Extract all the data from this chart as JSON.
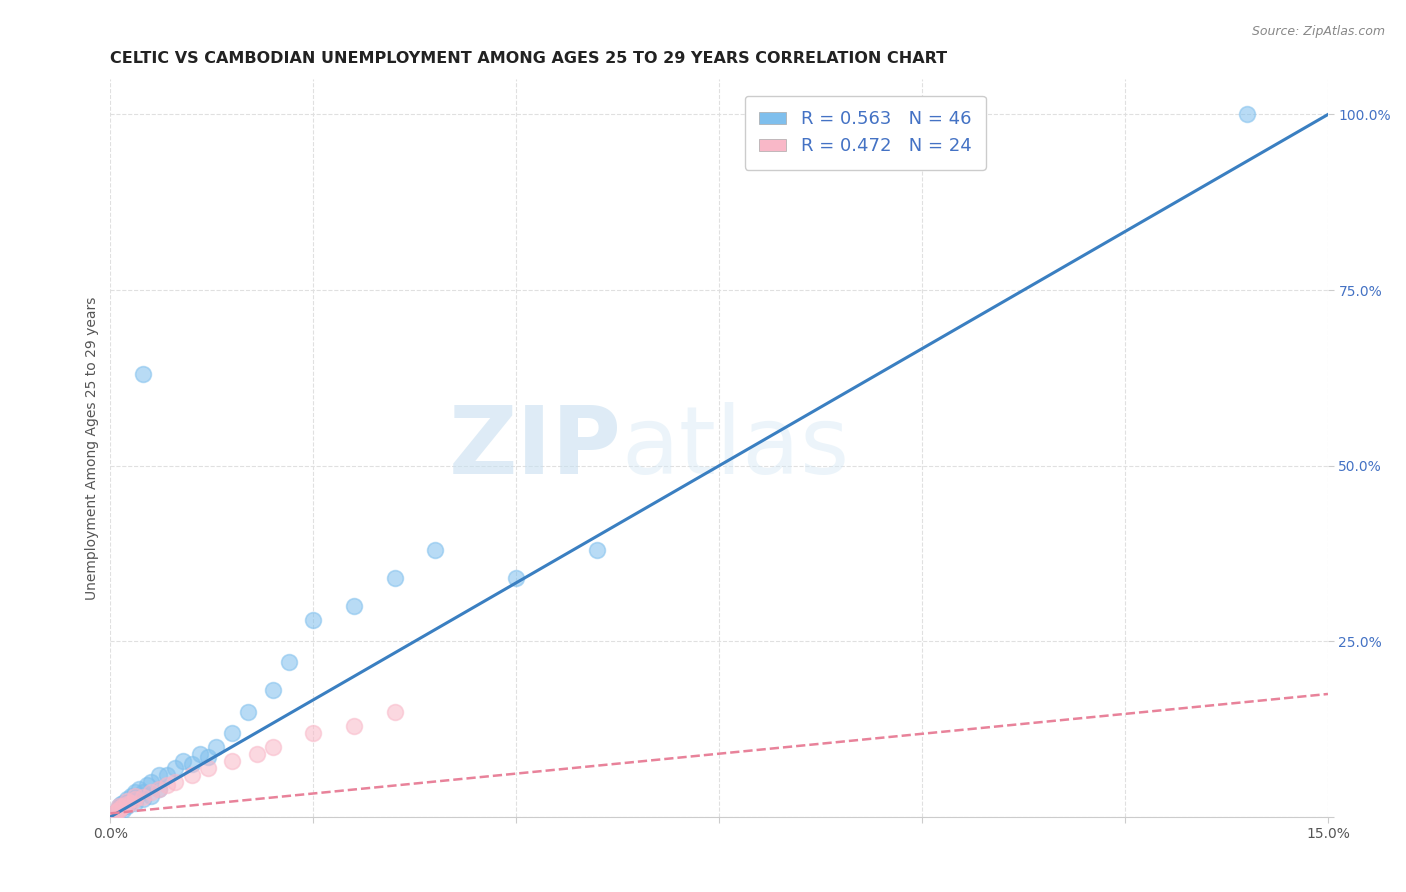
{
  "title": "CELTIC VS CAMBODIAN UNEMPLOYMENT AMONG AGES 25 TO 29 YEARS CORRELATION CHART",
  "source_text": "Source: ZipAtlas.com",
  "ylabel": "Unemployment Among Ages 25 to 29 years",
  "xlim": [
    0.0,
    0.15
  ],
  "ylim": [
    0.0,
    1.05
  ],
  "xticks": [
    0.0,
    0.025,
    0.05,
    0.075,
    0.1,
    0.125,
    0.15
  ],
  "xticklabels": [
    "0.0%",
    "",
    "",
    "",
    "",
    "",
    "15.0%"
  ],
  "yticks": [
    0.0,
    0.25,
    0.5,
    0.75,
    1.0
  ],
  "yticklabels": [
    "",
    "25.0%",
    "50.0%",
    "75.0%",
    "100.0%"
  ],
  "celtic_color": "#7fbfed",
  "cambodian_color": "#f9b8c8",
  "celtic_line_color": "#3a7fc1",
  "cambodian_line_color": "#e8829a",
  "watermark_zip": "ZIP",
  "watermark_atlas": "atlas",
  "bg_color": "#ffffff",
  "grid_color": "#e0e0e0",
  "title_fontsize": 11.5,
  "axis_label_fontsize": 10,
  "tick_fontsize": 10,
  "legend_fontsize": 13,
  "legend_r_celtic": "R = 0.563",
  "legend_n_celtic": "N = 46",
  "legend_r_cambodian": "R = 0.472",
  "legend_n_cambodian": "N = 24",
  "celtic_x": [
    0.0005,
    0.0008,
    0.001,
    0.001,
    0.0012,
    0.0013,
    0.0015,
    0.0015,
    0.0018,
    0.002,
    0.002,
    0.002,
    0.0022,
    0.0025,
    0.0025,
    0.003,
    0.003,
    0.003,
    0.0032,
    0.0035,
    0.004,
    0.004,
    0.0045,
    0.005,
    0.005,
    0.006,
    0.006,
    0.007,
    0.008,
    0.009,
    0.01,
    0.011,
    0.012,
    0.013,
    0.015,
    0.017,
    0.02,
    0.022,
    0.025,
    0.03,
    0.035,
    0.04,
    0.05,
    0.06,
    0.14,
    0.004
  ],
  "celtic_y": [
    0.005,
    0.008,
    0.01,
    0.015,
    0.012,
    0.018,
    0.01,
    0.02,
    0.015,
    0.015,
    0.02,
    0.025,
    0.018,
    0.022,
    0.03,
    0.02,
    0.025,
    0.035,
    0.028,
    0.04,
    0.025,
    0.035,
    0.045,
    0.03,
    0.05,
    0.04,
    0.06,
    0.06,
    0.07,
    0.08,
    0.075,
    0.09,
    0.085,
    0.1,
    0.12,
    0.15,
    0.18,
    0.22,
    0.28,
    0.3,
    0.34,
    0.38,
    0.34,
    0.38,
    1.0,
    0.63
  ],
  "cambodian_x": [
    0.0005,
    0.0008,
    0.001,
    0.001,
    0.0012,
    0.0015,
    0.002,
    0.002,
    0.0025,
    0.003,
    0.003,
    0.004,
    0.005,
    0.006,
    0.007,
    0.008,
    0.01,
    0.012,
    0.015,
    0.018,
    0.02,
    0.025,
    0.03,
    0.035
  ],
  "cambodian_y": [
    0.005,
    0.008,
    0.01,
    0.015,
    0.012,
    0.015,
    0.018,
    0.022,
    0.02,
    0.025,
    0.03,
    0.028,
    0.035,
    0.04,
    0.045,
    0.05,
    0.06,
    0.07,
    0.08,
    0.09,
    0.1,
    0.12,
    0.13,
    0.15
  ],
  "celtic_trend_x": [
    0.0,
    0.15
  ],
  "celtic_trend_y": [
    0.0,
    1.0
  ],
  "cambodian_trend_x": [
    0.0,
    0.15
  ],
  "cambodian_trend_y": [
    0.005,
    0.175
  ]
}
